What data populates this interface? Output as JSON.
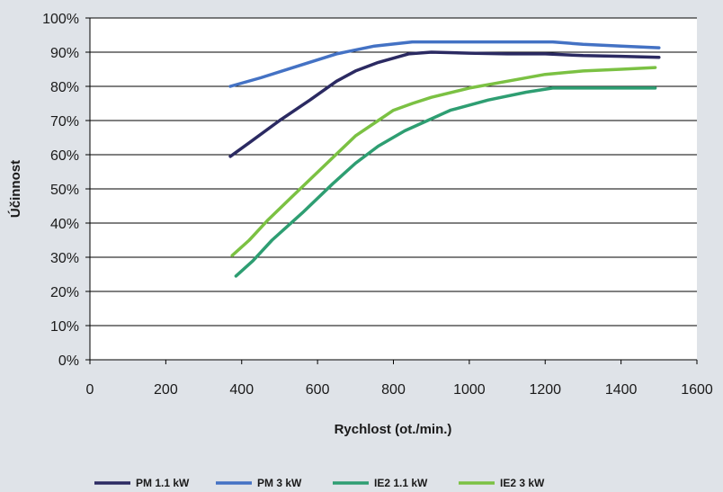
{
  "chart_data": {
    "type": "line",
    "title": "",
    "xlabel": "Rychlost (ot./min.)",
    "ylabel": "Účinnost",
    "xlim": [
      0,
      1600
    ],
    "ylim": [
      0,
      100
    ],
    "x_ticks": [
      0,
      200,
      400,
      600,
      800,
      1000,
      1200,
      1400,
      1600
    ],
    "y_ticks": [
      0,
      10,
      20,
      30,
      40,
      50,
      60,
      70,
      80,
      90,
      100
    ],
    "x_tick_labels": [
      "0",
      "200",
      "400",
      "600",
      "800",
      "1000",
      "1200",
      "1400",
      "1600"
    ],
    "y_tick_labels": [
      "0%",
      "10%",
      "20%",
      "30%",
      "40%",
      "50%",
      "60%",
      "70%",
      "80%",
      "90%",
      "100%"
    ],
    "grid": "horizontal",
    "legend_position": "bottom",
    "series": [
      {
        "name": "PM 1.1 kW",
        "color": "#2b2a62",
        "points": [
          [
            370,
            59.5
          ],
          [
            420,
            63.5
          ],
          [
            500,
            70
          ],
          [
            580,
            76
          ],
          [
            650,
            81.5
          ],
          [
            700,
            84.5
          ],
          [
            760,
            87
          ],
          [
            840,
            89.5
          ],
          [
            900,
            90
          ],
          [
            1000,
            89.7
          ],
          [
            1100,
            89.5
          ],
          [
            1200,
            89.5
          ],
          [
            1300,
            89
          ],
          [
            1400,
            88.8
          ],
          [
            1500,
            88.5
          ]
        ]
      },
      {
        "name": "PM 3 kW",
        "color": "#4472c4",
        "points": [
          [
            370,
            80
          ],
          [
            450,
            82.5
          ],
          [
            550,
            86
          ],
          [
            650,
            89.5
          ],
          [
            750,
            91.8
          ],
          [
            850,
            93
          ],
          [
            950,
            93
          ],
          [
            1050,
            93
          ],
          [
            1150,
            93
          ],
          [
            1220,
            93
          ],
          [
            1300,
            92.3
          ],
          [
            1400,
            91.8
          ],
          [
            1500,
            91.3
          ]
        ]
      },
      {
        "name": "IE2 1.1 kW",
        "color": "#2e9e72",
        "points": [
          [
            385,
            24.5
          ],
          [
            430,
            29
          ],
          [
            480,
            35
          ],
          [
            560,
            43
          ],
          [
            640,
            51.5
          ],
          [
            700,
            57.5
          ],
          [
            760,
            62.5
          ],
          [
            830,
            67
          ],
          [
            900,
            70.5
          ],
          [
            950,
            73
          ],
          [
            1050,
            76
          ],
          [
            1150,
            78.3
          ],
          [
            1220,
            79.5
          ],
          [
            1300,
            79.5
          ],
          [
            1400,
            79.5
          ],
          [
            1490,
            79.5
          ]
        ]
      },
      {
        "name": "IE2 3 kW",
        "color": "#7bc143",
        "points": [
          [
            375,
            30.5
          ],
          [
            420,
            35
          ],
          [
            470,
            41
          ],
          [
            540,
            48.5
          ],
          [
            620,
            57
          ],
          [
            700,
            65.5
          ],
          [
            760,
            70
          ],
          [
            800,
            73
          ],
          [
            850,
            75
          ],
          [
            900,
            76.8
          ],
          [
            1000,
            79.5
          ],
          [
            1100,
            81.5
          ],
          [
            1200,
            83.5
          ],
          [
            1300,
            84.5
          ],
          [
            1400,
            85
          ],
          [
            1490,
            85.5
          ]
        ]
      }
    ]
  }
}
